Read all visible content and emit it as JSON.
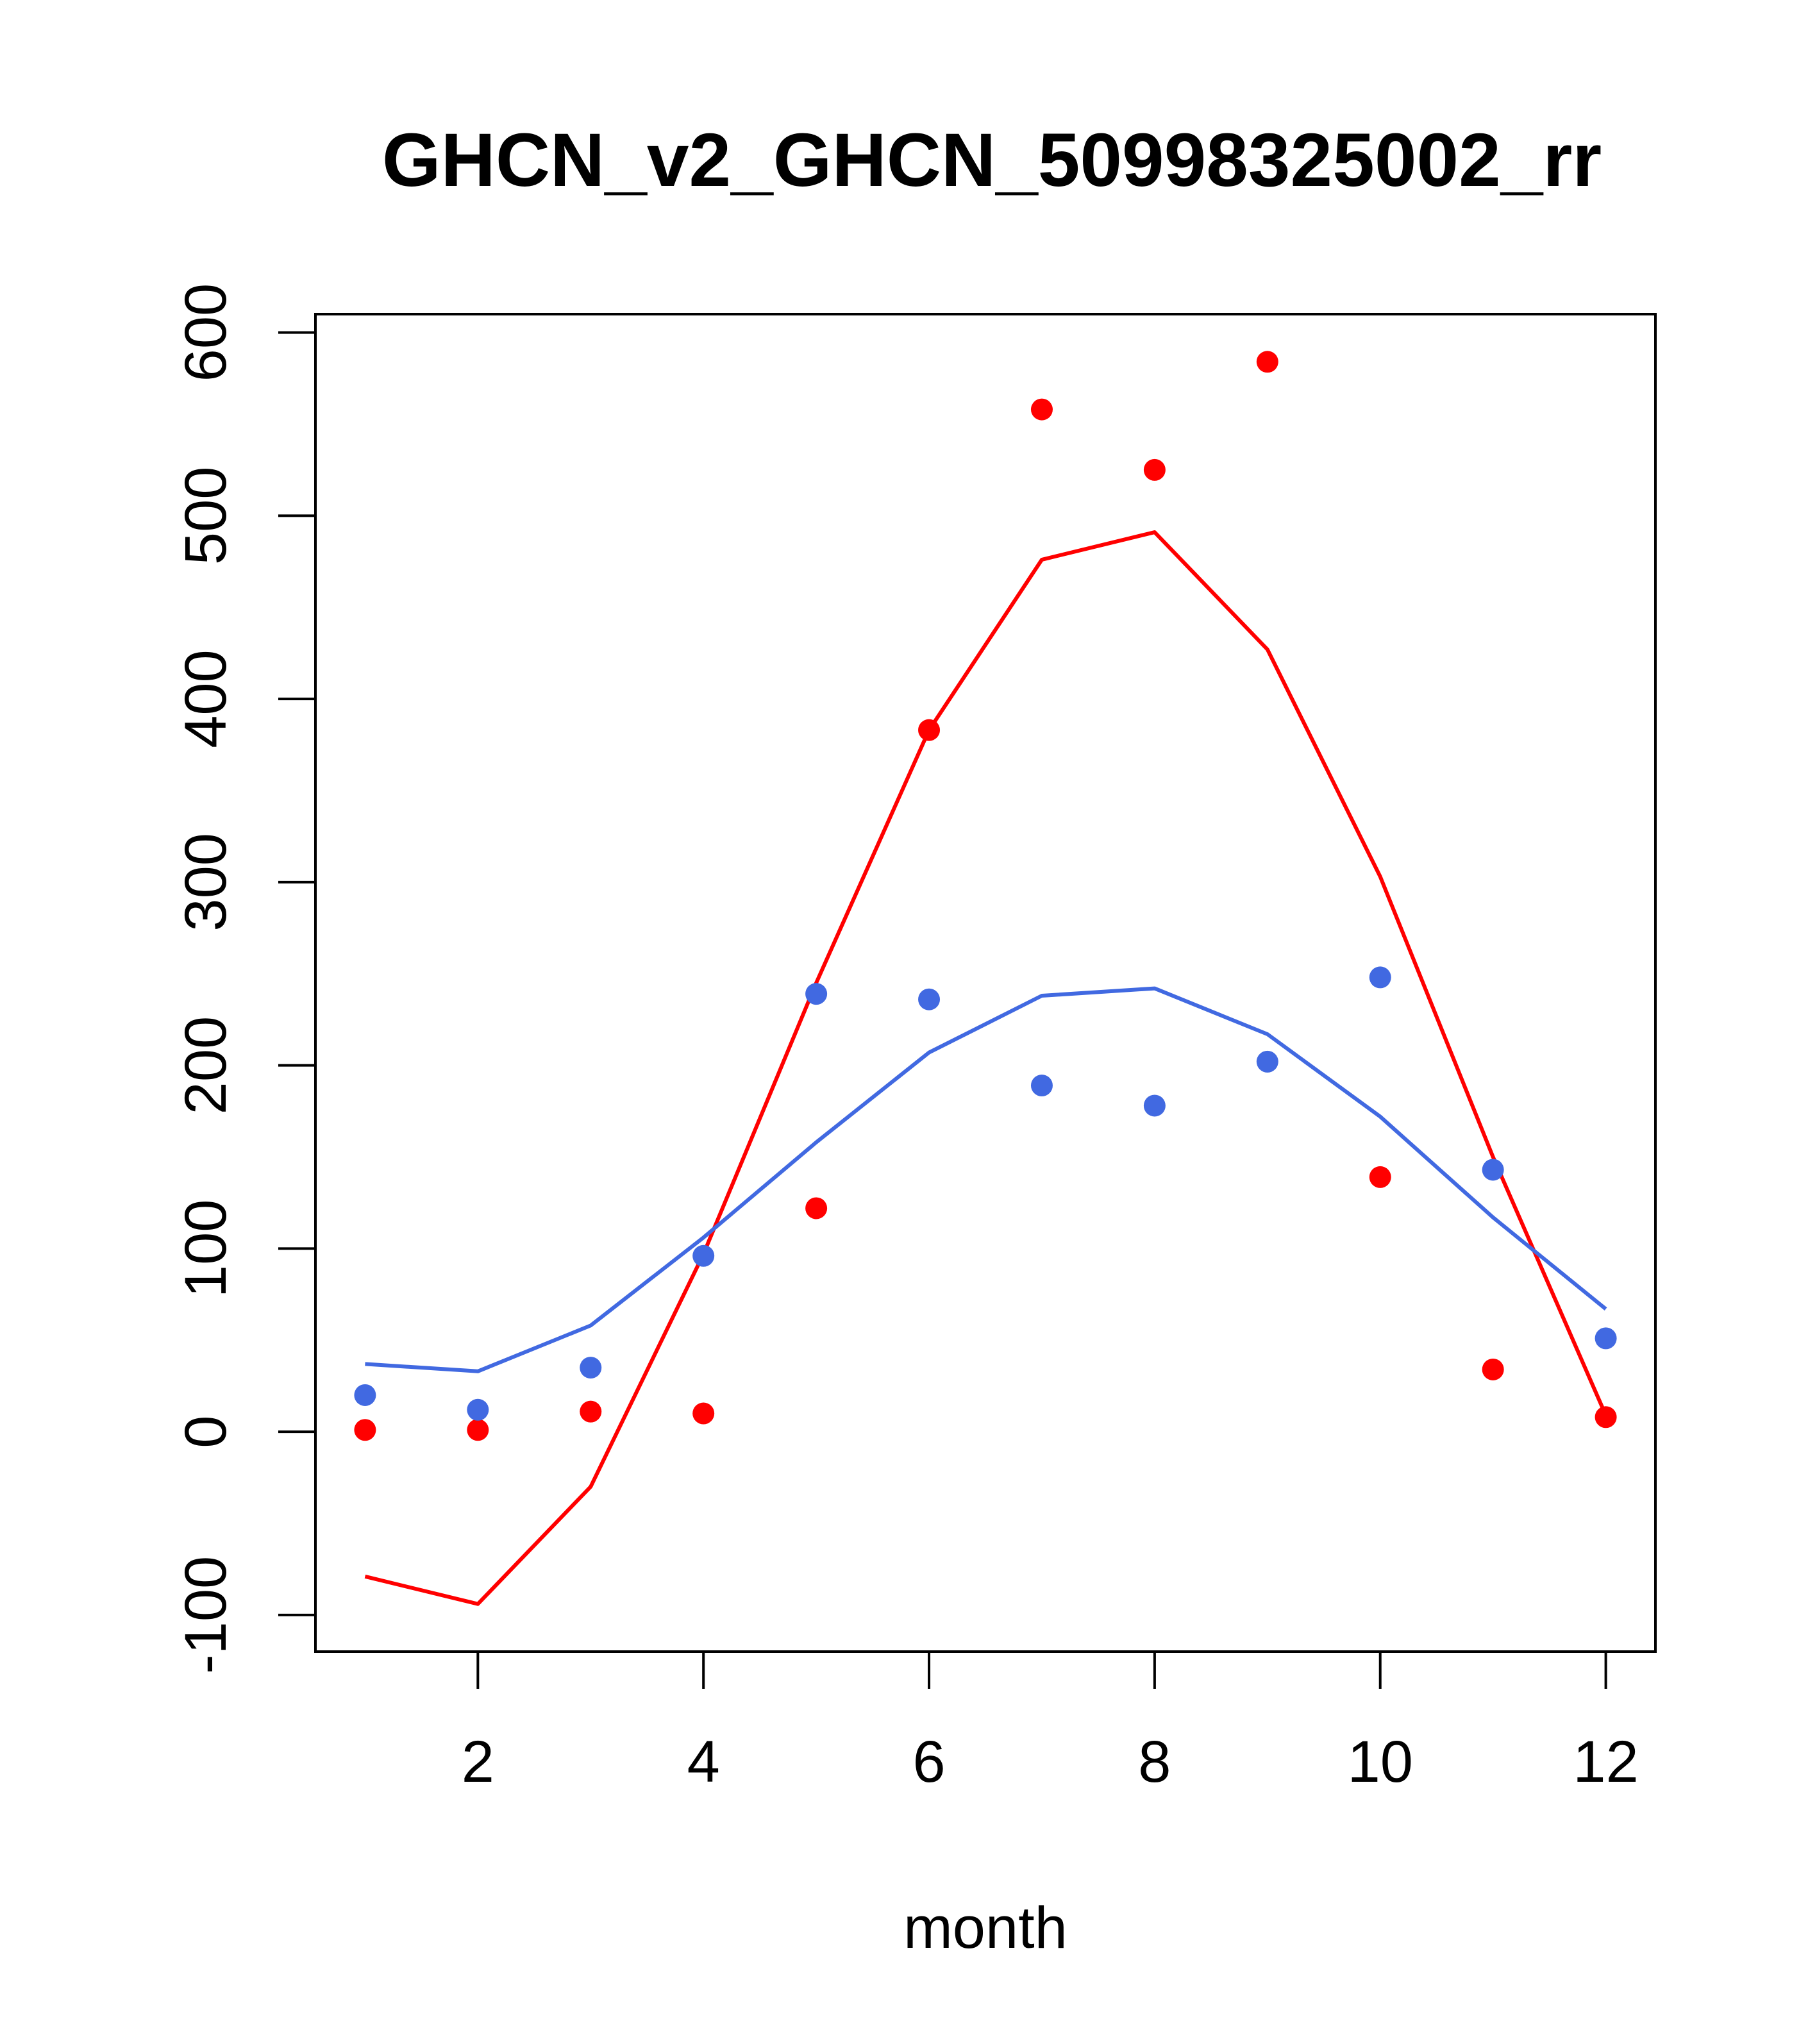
{
  "chart_data": {
    "type": "line",
    "title": "GHCN_v2_GHCN_50998325002_rr",
    "xlabel": "month",
    "ylabel": "",
    "xlim": [
      0.56,
      12.44
    ],
    "ylim": [
      -120,
      610
    ],
    "x_ticks": [
      2,
      4,
      6,
      8,
      10,
      12
    ],
    "y_ticks": [
      -100,
      0,
      100,
      200,
      300,
      400,
      500,
      600
    ],
    "x_tick_labels": [
      "2",
      "4",
      "6",
      "8",
      "10",
      "12"
    ],
    "y_tick_labels": [
      "-100",
      "0",
      "100",
      "200",
      "300",
      "400",
      "500",
      "600"
    ],
    "grid": false,
    "legend": "none",
    "x": [
      1,
      2,
      3,
      4,
      5,
      6,
      7,
      8,
      9,
      10,
      11,
      12
    ],
    "series": [
      {
        "kind": "line",
        "color": "#ff0000",
        "values": [
          -79,
          -94,
          -30,
          97,
          245,
          383,
          476,
          491,
          427,
          303,
          150,
          9
        ]
      },
      {
        "kind": "line",
        "color": "#4169e1",
        "values": [
          37,
          33,
          58,
          106,
          158,
          207,
          238,
          242,
          217,
          172,
          117,
          67
        ]
      },
      {
        "kind": "points",
        "color": "#ff0000",
        "values": [
          1,
          1,
          11,
          10,
          122,
          383,
          558,
          525,
          584,
          139,
          34,
          8
        ]
      },
      {
        "kind": "points",
        "color": "#4169e1",
        "values": [
          20,
          12,
          35,
          96,
          239,
          236,
          189,
          178,
          202,
          248,
          143,
          51
        ]
      }
    ]
  }
}
